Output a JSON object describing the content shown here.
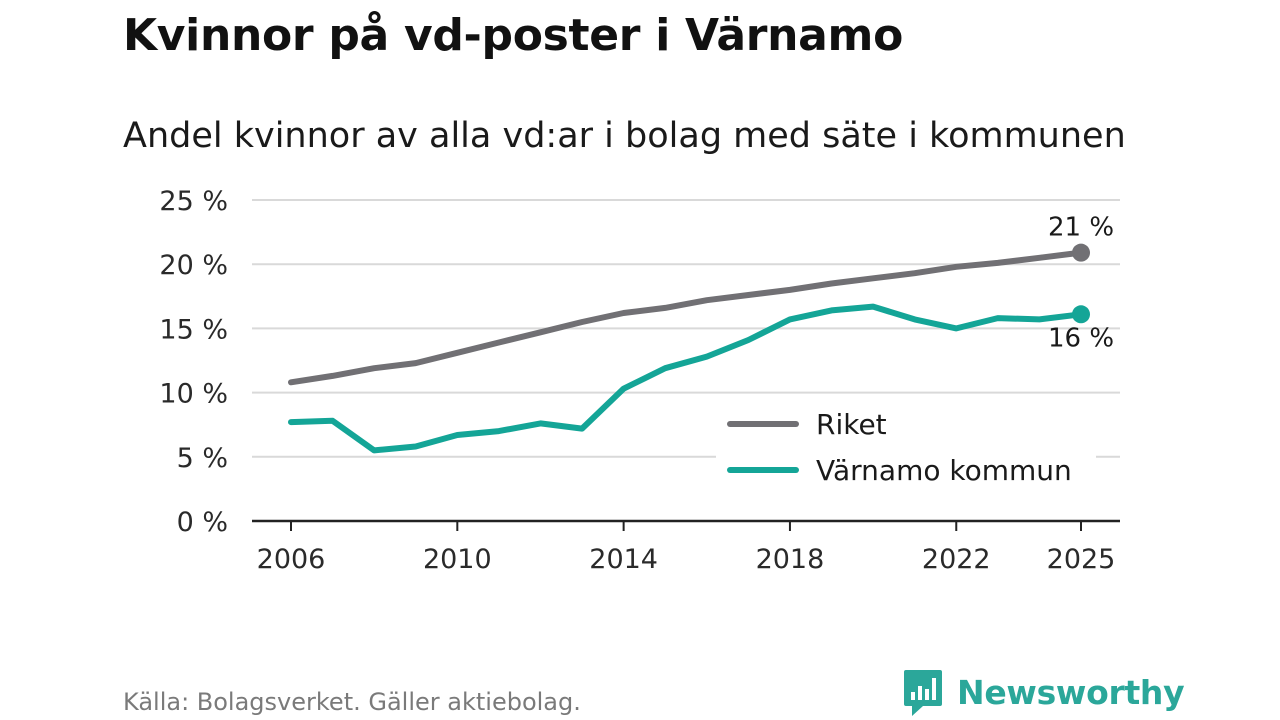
{
  "header": {
    "title": "Kvinnor på vd-poster i Värnamo",
    "subtitle": "Andel kvinnor av alla vd:ar i bolag med säte i kommunen"
  },
  "footer": {
    "source": "Källa: Bolagsverket. Gäller aktiebolag.",
    "brand": "Newsworthy",
    "brand_icon": "newsworthy-logo-icon"
  },
  "colors": {
    "riket": "#717074",
    "varnamo": "#14a597",
    "grid": "#d9d9d9",
    "axis": "#222222",
    "brand": "#2ba79a"
  },
  "chart_data": {
    "type": "line",
    "title": "Kvinnor på vd-poster i Värnamo",
    "subtitle": "Andel kvinnor av alla vd:ar i bolag med säte i kommunen",
    "xlabel": "",
    "ylabel": "",
    "x": [
      2006,
      2007,
      2008,
      2009,
      2010,
      2011,
      2012,
      2013,
      2014,
      2015,
      2016,
      2017,
      2018,
      2019,
      2020,
      2021,
      2022,
      2023,
      2024,
      2025
    ],
    "x_ticks": [
      "2006",
      "2010",
      "2014",
      "2018",
      "2022",
      "2025"
    ],
    "x_tick_values": [
      2006,
      2010,
      2014,
      2018,
      2022,
      2025
    ],
    "y_ticks": [
      "0 %",
      "5 %",
      "10 %",
      "15 %",
      "20 %",
      "25 %"
    ],
    "y_tick_values": [
      0,
      5,
      10,
      15,
      20,
      25
    ],
    "xlim": [
      2006,
      2025
    ],
    "ylim": [
      0,
      25
    ],
    "grid": true,
    "legend_position": "bottom-right",
    "series": [
      {
        "name": "Riket",
        "key": "riket",
        "values": [
          10.8,
          11.3,
          11.9,
          12.3,
          13.1,
          13.9,
          14.7,
          15.5,
          16.2,
          16.6,
          17.2,
          17.6,
          18.0,
          18.5,
          18.9,
          19.3,
          19.8,
          20.1,
          20.5,
          20.9
        ],
        "end_label": "21 %"
      },
      {
        "name": "Värnamo kommun",
        "key": "varnamo",
        "values": [
          7.7,
          7.8,
          5.5,
          5.8,
          6.7,
          7.0,
          7.6,
          7.2,
          10.3,
          11.9,
          12.8,
          14.1,
          15.7,
          16.4,
          16.7,
          15.7,
          15.0,
          15.8,
          15.7,
          16.1
        ],
        "end_label": "16 %"
      }
    ]
  }
}
